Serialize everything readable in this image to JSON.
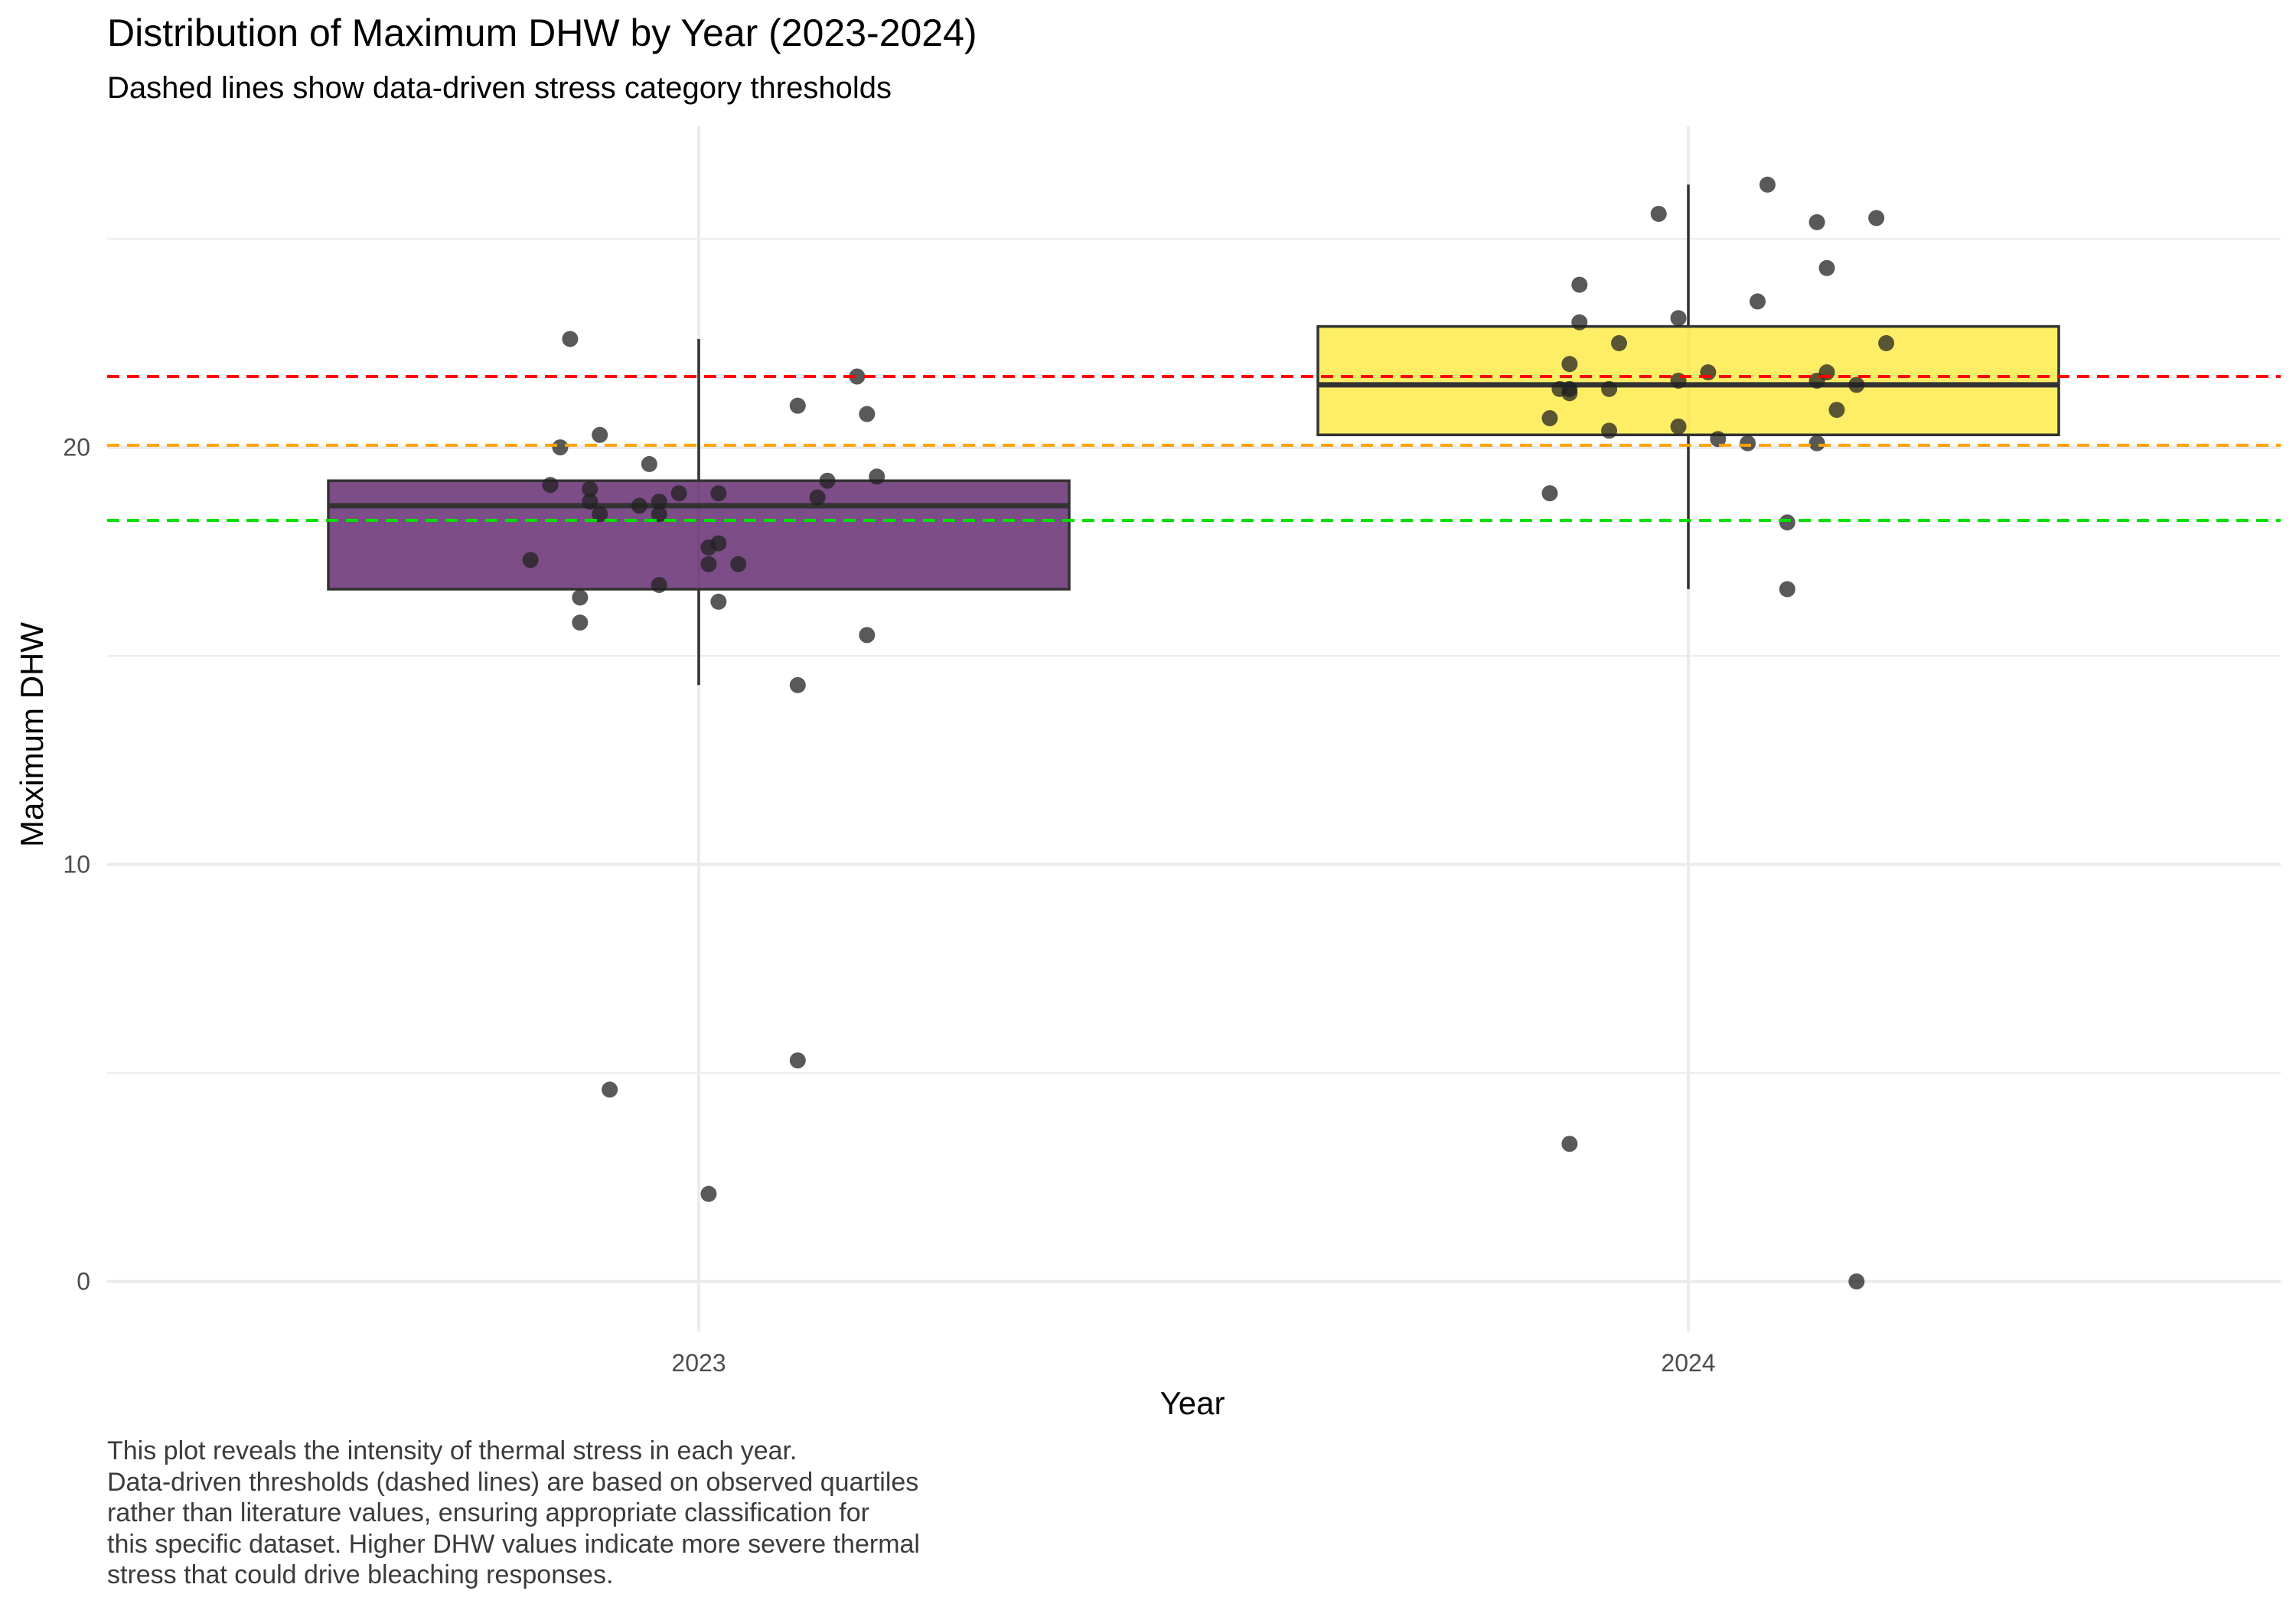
{
  "chart_data": {
    "type": "box",
    "title": "Distribution of Maximum DHW by Year (2023-2024)",
    "subtitle": "Dashed lines show data-driven stress category thresholds",
    "xlabel": "Year",
    "ylabel": "Maximum DHW",
    "categories": [
      "2023",
      "2024"
    ],
    "ylim": [
      -1.2,
      27.7
    ],
    "yticks": [
      0,
      10,
      20
    ],
    "grid": true,
    "boxes": [
      {
        "category": "2023",
        "q1": 16.6,
        "median": 18.6,
        "q3": 19.2,
        "whisker_low": 14.3,
        "whisker_high": 22.6,
        "fill": "#440154",
        "fill_opacity": 0.7
      },
      {
        "category": "2024",
        "q1": 20.3,
        "median": 21.5,
        "q3": 22.9,
        "whisker_low": 16.6,
        "whisker_high": 26.3,
        "fill": "#FDE725",
        "fill_opacity": 0.7
      }
    ],
    "points": [
      {
        "category": "2023",
        "x": 2022.83,
        "y": 17.3
      },
      {
        "category": "2023",
        "x": 2022.85,
        "y": 19.1
      },
      {
        "category": "2023",
        "x": 2022.86,
        "y": 20.0
      },
      {
        "category": "2023",
        "x": 2022.87,
        "y": 22.6
      },
      {
        "category": "2023",
        "x": 2022.88,
        "y": 16.4
      },
      {
        "category": "2023",
        "x": 2022.88,
        "y": 15.8
      },
      {
        "category": "2023",
        "x": 2022.89,
        "y": 18.7
      },
      {
        "category": "2023",
        "x": 2022.89,
        "y": 19.0
      },
      {
        "category": "2023",
        "x": 2022.9,
        "y": 18.4
      },
      {
        "category": "2023",
        "x": 2022.9,
        "y": 20.3
      },
      {
        "category": "2023",
        "x": 2022.91,
        "y": 4.6
      },
      {
        "category": "2023",
        "x": 2022.94,
        "y": 18.6
      },
      {
        "category": "2023",
        "x": 2022.95,
        "y": 19.6
      },
      {
        "category": "2023",
        "x": 2022.96,
        "y": 18.4
      },
      {
        "category": "2023",
        "x": 2022.96,
        "y": 18.7
      },
      {
        "category": "2023",
        "x": 2022.96,
        "y": 16.7
      },
      {
        "category": "2023",
        "x": 2022.98,
        "y": 18.9
      },
      {
        "category": "2023",
        "x": 2023.01,
        "y": 17.6
      },
      {
        "category": "2023",
        "x": 2023.01,
        "y": 17.2
      },
      {
        "category": "2023",
        "x": 2023.01,
        "y": 2.1
      },
      {
        "category": "2023",
        "x": 2023.02,
        "y": 18.9
      },
      {
        "category": "2023",
        "x": 2023.02,
        "y": 17.7
      },
      {
        "category": "2023",
        "x": 2023.02,
        "y": 16.3
      },
      {
        "category": "2023",
        "x": 2023.04,
        "y": 17.2
      },
      {
        "category": "2023",
        "x": 2023.1,
        "y": 21.0
      },
      {
        "category": "2023",
        "x": 2023.1,
        "y": 5.3
      },
      {
        "category": "2023",
        "x": 2023.1,
        "y": 14.3
      },
      {
        "category": "2023",
        "x": 2023.12,
        "y": 18.8
      },
      {
        "category": "2023",
        "x": 2023.13,
        "y": 19.2
      },
      {
        "category": "2023",
        "x": 2023.16,
        "y": 21.7
      },
      {
        "category": "2023",
        "x": 2023.17,
        "y": 20.8
      },
      {
        "category": "2023",
        "x": 2023.17,
        "y": 15.5
      },
      {
        "category": "2023",
        "x": 2023.18,
        "y": 19.3
      },
      {
        "category": "2024",
        "x": 2023.86,
        "y": 20.7
      },
      {
        "category": "2024",
        "x": 2023.86,
        "y": 18.9
      },
      {
        "category": "2024",
        "x": 2023.87,
        "y": 21.4
      },
      {
        "category": "2024",
        "x": 2023.88,
        "y": 21.3
      },
      {
        "category": "2024",
        "x": 2023.88,
        "y": 22.0
      },
      {
        "category": "2024",
        "x": 2023.88,
        "y": 21.4
      },
      {
        "category": "2024",
        "x": 2023.88,
        "y": 3.3
      },
      {
        "category": "2024",
        "x": 2023.89,
        "y": 23.0
      },
      {
        "category": "2024",
        "x": 2023.89,
        "y": 23.9
      },
      {
        "category": "2024",
        "x": 2023.92,
        "y": 21.4
      },
      {
        "category": "2024",
        "x": 2023.92,
        "y": 20.4
      },
      {
        "category": "2024",
        "x": 2023.93,
        "y": 22.5
      },
      {
        "category": "2024",
        "x": 2023.97,
        "y": 25.6
      },
      {
        "category": "2024",
        "x": 2023.99,
        "y": 23.1
      },
      {
        "category": "2024",
        "x": 2023.99,
        "y": 21.6
      },
      {
        "category": "2024",
        "x": 2023.99,
        "y": 20.5
      },
      {
        "category": "2024",
        "x": 2024.02,
        "y": 21.8
      },
      {
        "category": "2024",
        "x": 2024.03,
        "y": 20.2
      },
      {
        "category": "2024",
        "x": 2024.06,
        "y": 20.1
      },
      {
        "category": "2024",
        "x": 2024.07,
        "y": 23.5
      },
      {
        "category": "2024",
        "x": 2024.08,
        "y": 26.3
      },
      {
        "category": "2024",
        "x": 2024.1,
        "y": 18.2
      },
      {
        "category": "2024",
        "x": 2024.1,
        "y": 16.6
      },
      {
        "category": "2024",
        "x": 2024.13,
        "y": 25.4
      },
      {
        "category": "2024",
        "x": 2024.13,
        "y": 21.6
      },
      {
        "category": "2024",
        "x": 2024.13,
        "y": 20.1
      },
      {
        "category": "2024",
        "x": 2024.14,
        "y": 21.8
      },
      {
        "category": "2024",
        "x": 2024.14,
        "y": 24.3
      },
      {
        "category": "2024",
        "x": 2024.15,
        "y": 20.9
      },
      {
        "category": "2024",
        "x": 2024.17,
        "y": 21.5
      },
      {
        "category": "2024",
        "x": 2024.17,
        "y": 0.0
      },
      {
        "category": "2024",
        "x": 2024.19,
        "y": 25.5
      },
      {
        "category": "2024",
        "x": 2024.2,
        "y": 22.5
      }
    ],
    "thresholds": [
      {
        "y": 18.25,
        "color": "#00E000"
      },
      {
        "y": 20.05,
        "color": "#FFA500"
      },
      {
        "y": 21.7,
        "color": "#FF0000"
      }
    ],
    "point_color": "#222222",
    "caption_lines": [
      "This plot reveals the intensity of thermal stress in each year.",
      "Data-driven thresholds (dashed lines) are based on observed quartiles",
      "rather than literature values, ensuring appropriate classification for",
      "this specific dataset. Higher DHW values indicate more severe thermal",
      "stress that could drive bleaching responses."
    ]
  }
}
